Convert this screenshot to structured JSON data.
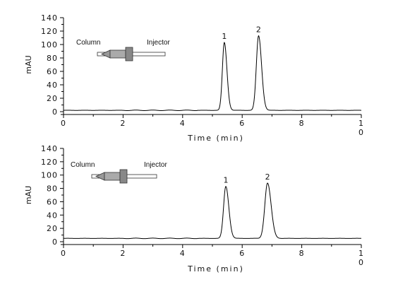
{
  "chart_data": [
    {
      "type": "line",
      "xlabel": "Time (min)",
      "ylabel": "mAU",
      "xlim": [
        0,
        10
      ],
      "ylim": [
        0,
        140
      ],
      "x_ticks": [
        "0",
        "2",
        "4",
        "6",
        "8",
        "1\n0"
      ],
      "y_ticks": [
        "0",
        "20",
        "40",
        "60",
        "80",
        "100",
        "120",
        "140"
      ],
      "baseline": 2,
      "peaks": [
        {
          "label": "1",
          "rt": 5.4,
          "height": 101,
          "width": 0.065
        },
        {
          "label": "2",
          "rt": 6.55,
          "height": 111,
          "width": 0.075
        }
      ],
      "diagram": {
        "left_label": "Column",
        "right_label": "Injector"
      }
    },
    {
      "type": "line",
      "xlabel": "Time (min)",
      "ylabel": "mAU",
      "xlim": [
        0,
        10
      ],
      "ylim": [
        0,
        140
      ],
      "x_ticks": [
        "0",
        "2",
        "4",
        "6",
        "8",
        "1\n0"
      ],
      "y_ticks": [
        "0",
        "20",
        "40",
        "60",
        "80",
        "100",
        "120",
        "140"
      ],
      "baseline": 5,
      "peaks": [
        {
          "label": "1",
          "rt": 5.45,
          "height": 78,
          "width": 0.075
        },
        {
          "label": "2",
          "rt": 6.85,
          "height": 83,
          "width": 0.09
        }
      ],
      "diagram": {
        "left_label": "Column",
        "right_label": "Injector"
      }
    }
  ]
}
